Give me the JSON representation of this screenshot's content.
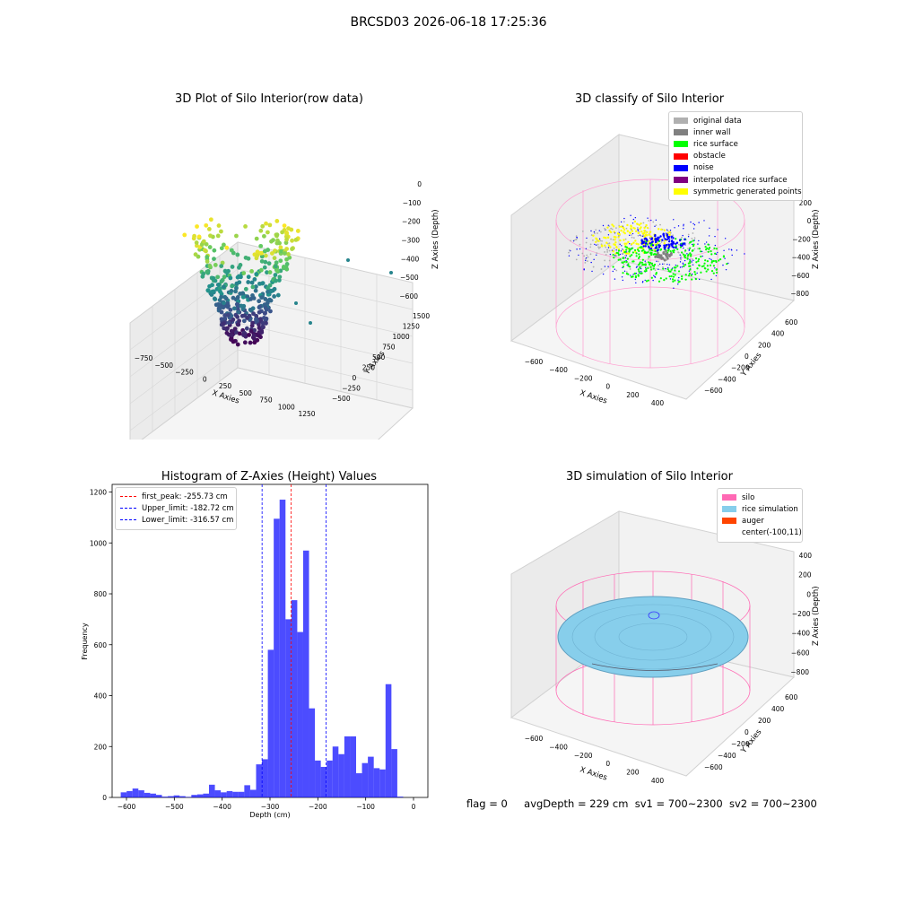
{
  "suptitle": "BRCSD03 2026-06-18 17:25:36",
  "footer": {
    "flag": "flag = 0",
    "avg_depth": "avgDepth = 229 cm",
    "sv1": "sv1 = 700~2300",
    "sv2": "sv2 = 700~2300"
  },
  "panels": {
    "raw": {
      "title": "3D Plot of Silo Interior(row data)",
      "xlabel": "X Axies",
      "ylabel": "Y Axies",
      "zlabel": "Z Axies (Depth)",
      "xticks": [
        "−750",
        "−500",
        "−250",
        "0",
        "250",
        "500",
        "750",
        "1000",
        "1250"
      ],
      "yticks": [
        "−500",
        "−250",
        "0",
        "250",
        "500",
        "750",
        "1000",
        "1250",
        "1500"
      ],
      "zticks": [
        "0",
        "−100",
        "−200",
        "−300",
        "−400",
        "−500",
        "−600"
      ]
    },
    "classify": {
      "title": "3D classify of Silo Interior",
      "xlabel": "X Axies",
      "ylabel": "Y Axies",
      "zlabel": "Z Axies (Depth)",
      "xticks": [
        "−600",
        "−400",
        "−200",
        "0",
        "200",
        "400"
      ],
      "yticks": [
        "−600",
        "−400",
        "−200",
        "0",
        "200",
        "400",
        "600"
      ],
      "zticks": [
        "200",
        "0",
        "−200",
        "−400",
        "−600",
        "−800"
      ],
      "legend": [
        {
          "label": "original data",
          "color": "#b0b0b0"
        },
        {
          "label": "inner wall",
          "color": "#808080"
        },
        {
          "label": "rice surface",
          "color": "#00ff00"
        },
        {
          "label": "obstacle",
          "color": "#ff0000"
        },
        {
          "label": "noise",
          "color": "#0000ff"
        },
        {
          "label": "interpolated rice surface",
          "color": "#800080"
        },
        {
          "label": "symmetric generated points",
          "color": "#ffff00"
        }
      ]
    },
    "simulation": {
      "title": "3D simulation of Silo Interior",
      "xlabel": "X Axies",
      "ylabel": "Y Axies",
      "zlabel": "Z Axies (Depth)",
      "xticks": [
        "−600",
        "−400",
        "−200",
        "0",
        "200",
        "400"
      ],
      "yticks": [
        "−600",
        "−400",
        "−200",
        "0",
        "200",
        "400",
        "600"
      ],
      "zticks": [
        "400",
        "200",
        "0",
        "−200",
        "−400",
        "−600",
        "−800"
      ],
      "legend": [
        {
          "label": "silo",
          "color": "#ff69b4"
        },
        {
          "label": "rice simulation",
          "color": "#87ceeb"
        },
        {
          "label": "auger",
          "color": "#ff4500"
        },
        {
          "label": "center(-100,11)",
          "color": "#ffffff"
        }
      ]
    }
  },
  "chart_data": {
    "type": "bar",
    "title": "Histogram of Z-Axies (Height) Values",
    "xlabel": "Depth (cm)",
    "ylabel": "Frequency",
    "xlim": [
      -630,
      30
    ],
    "ylim": [
      0,
      1230
    ],
    "xticks": [
      -600,
      -500,
      -400,
      -300,
      -200,
      -100,
      0
    ],
    "xtick_labels": [
      "−600",
      "−500",
      "−400",
      "−300",
      "−200",
      "−100",
      "0"
    ],
    "yticks": [
      0,
      200,
      400,
      600,
      800,
      1000,
      1200
    ],
    "bar_color": "#0000ff",
    "bin_width": 12.3,
    "bins_start": [
      -612.0,
      -599.7,
      -587.4,
      -575.1,
      -562.8,
      -550.5,
      -538.2,
      -525.9,
      -513.6,
      -501.3,
      -489.0,
      -476.7,
      -464.4,
      -452.1,
      -439.8,
      -427.5,
      -415.2,
      -402.9,
      -390.6,
      -378.3,
      -366.0,
      -353.7,
      -341.4,
      -329.1,
      -316.8,
      -304.5,
      -292.2,
      -279.9,
      -267.6,
      -255.3,
      -243.0,
      -230.7,
      -218.4,
      -206.1,
      -193.8,
      -181.5,
      -169.2,
      -156.9,
      -144.6,
      -132.3,
      -120.0,
      -107.7,
      -95.4,
      -83.1,
      -70.8,
      -58.5,
      -46.2,
      -33.9,
      -21.6,
      -9.3
    ],
    "values": [
      20,
      25,
      35,
      28,
      18,
      15,
      10,
      3,
      5,
      8,
      5,
      2,
      10,
      12,
      15,
      50,
      28,
      20,
      25,
      22,
      22,
      48,
      30,
      130,
      150,
      580,
      1095,
      1170,
      700,
      775,
      650,
      970,
      350,
      145,
      120,
      145,
      200,
      170,
      240,
      240,
      95,
      135,
      160,
      115,
      110,
      445,
      190,
      3,
      0,
      0
    ],
    "vlines": [
      {
        "label": "first_peak: -255.73 cm",
        "x": -255.73,
        "color": "#ff0000"
      },
      {
        "label": "Upper_limit: -182.72 cm",
        "x": -182.72,
        "color": "#0000ff"
      },
      {
        "label": "Lower_limit: -316.57 cm",
        "x": -316.57,
        "color": "#0000ff"
      }
    ],
    "legend_position": "top-left"
  }
}
